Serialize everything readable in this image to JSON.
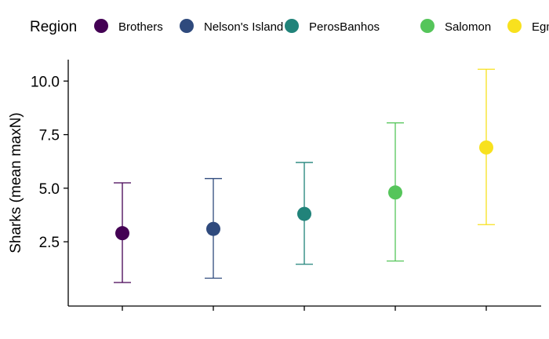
{
  "chart_data": {
    "type": "scatter",
    "subtype": "point-with-error-bars",
    "title": "",
    "xlabel": "",
    "ylabel": "Sharks (mean maxN)",
    "legend": {
      "title": "Region",
      "position": "top",
      "entries": [
        "Brothers",
        "Nelson's Island",
        "PerosBanhos",
        "Salomon",
        "Egmont"
      ]
    },
    "categories": [
      "Brothers",
      "Nelson's Island",
      "PerosBanhos",
      "Salomon",
      "Egmont"
    ],
    "series": [
      {
        "name": "Brothers",
        "color": "#440154",
        "mean": 2.9,
        "lower": 0.6,
        "upper": 5.25
      },
      {
        "name": "Nelson's Island",
        "color": "#2F4A7D",
        "mean": 3.1,
        "lower": 0.8,
        "upper": 5.45
      },
      {
        "name": "PerosBanhos",
        "color": "#21837A",
        "mean": 3.8,
        "lower": 1.45,
        "upper": 6.2
      },
      {
        "name": "Salomon",
        "color": "#55C55A",
        "mean": 4.8,
        "lower": 1.6,
        "upper": 8.05
      },
      {
        "name": "Egmont",
        "color": "#F8E11E",
        "mean": 6.9,
        "lower": 3.3,
        "upper": 10.55
      }
    ],
    "y_ticks": [
      2.5,
      5.0,
      7.5,
      10.0
    ],
    "y_tick_labels": [
      "2.5",
      "5.0",
      "7.5",
      "10.0"
    ],
    "ylim": [
      -0.5,
      11.0
    ],
    "x_tick_labels_shown": false,
    "grid": false
  }
}
